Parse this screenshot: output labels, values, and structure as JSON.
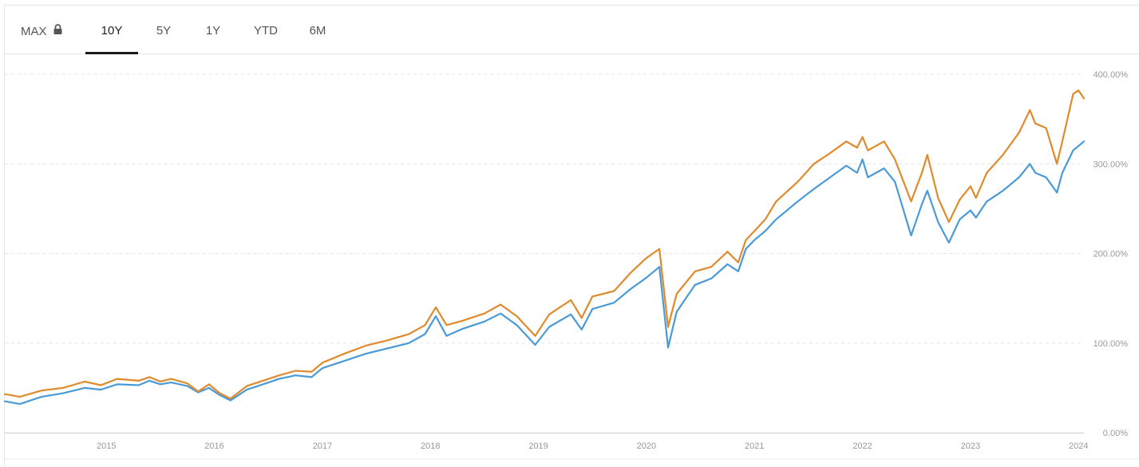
{
  "tabs": [
    {
      "label": "MAX",
      "locked": true
    },
    {
      "label": "10Y",
      "active": true
    },
    {
      "label": "5Y"
    },
    {
      "label": "1Y"
    },
    {
      "label": "YTD"
    },
    {
      "label": "6M"
    }
  ],
  "colors": {
    "series_orange": "#e08a2b",
    "series_blue": "#4a9ad8",
    "grid": "#e6e6e6",
    "axis_text": "#999999"
  },
  "chart_data": {
    "type": "line",
    "y_ticks": [
      "400.00%",
      "300.00%",
      "200.00%",
      "100.00%",
      "0.00%"
    ],
    "x_ticks": [
      "2015",
      "2016",
      "2017",
      "2018",
      "2019",
      "2020",
      "2021",
      "2022",
      "2023",
      "2024"
    ],
    "ylim": [
      0,
      400
    ],
    "xlim": [
      2014.06,
      2024.05
    ],
    "grid": "horizontal dashed",
    "series": [
      {
        "color": "#e08a2b",
        "points": [
          [
            2014.06,
            43
          ],
          [
            2014.2,
            40
          ],
          [
            2014.4,
            47
          ],
          [
            2014.6,
            50
          ],
          [
            2014.8,
            57
          ],
          [
            2014.95,
            53
          ],
          [
            2015.1,
            60
          ],
          [
            2015.3,
            58
          ],
          [
            2015.4,
            62
          ],
          [
            2015.5,
            57
          ],
          [
            2015.6,
            60
          ],
          [
            2015.75,
            55
          ],
          [
            2015.85,
            46
          ],
          [
            2015.95,
            54
          ],
          [
            2016.05,
            44
          ],
          [
            2016.15,
            38
          ],
          [
            2016.3,
            52
          ],
          [
            2016.45,
            58
          ],
          [
            2016.6,
            64
          ],
          [
            2016.75,
            69
          ],
          [
            2016.9,
            68
          ],
          [
            2017.0,
            78
          ],
          [
            2017.2,
            88
          ],
          [
            2017.4,
            97
          ],
          [
            2017.6,
            103
          ],
          [
            2017.8,
            110
          ],
          [
            2017.95,
            120
          ],
          [
            2018.05,
            140
          ],
          [
            2018.15,
            120
          ],
          [
            2018.3,
            125
          ],
          [
            2018.5,
            133
          ],
          [
            2018.65,
            143
          ],
          [
            2018.8,
            130
          ],
          [
            2018.97,
            108
          ],
          [
            2019.1,
            132
          ],
          [
            2019.3,
            148
          ],
          [
            2019.4,
            128
          ],
          [
            2019.5,
            152
          ],
          [
            2019.7,
            158
          ],
          [
            2019.85,
            178
          ],
          [
            2020.0,
            195
          ],
          [
            2020.12,
            205
          ],
          [
            2020.2,
            118
          ],
          [
            2020.28,
            155
          ],
          [
            2020.45,
            180
          ],
          [
            2020.6,
            185
          ],
          [
            2020.75,
            202
          ],
          [
            2020.85,
            190
          ],
          [
            2020.92,
            215
          ],
          [
            2021.0,
            225
          ],
          [
            2021.1,
            238
          ],
          [
            2021.2,
            258
          ],
          [
            2021.4,
            280
          ],
          [
            2021.55,
            300
          ],
          [
            2021.7,
            312
          ],
          [
            2021.85,
            325
          ],
          [
            2021.95,
            318
          ],
          [
            2022.0,
            330
          ],
          [
            2022.05,
            315
          ],
          [
            2022.2,
            325
          ],
          [
            2022.3,
            305
          ],
          [
            2022.45,
            258
          ],
          [
            2022.55,
            290
          ],
          [
            2022.6,
            310
          ],
          [
            2022.7,
            262
          ],
          [
            2022.8,
            235
          ],
          [
            2022.9,
            260
          ],
          [
            2023.0,
            275
          ],
          [
            2023.05,
            262
          ],
          [
            2023.15,
            290
          ],
          [
            2023.3,
            310
          ],
          [
            2023.45,
            335
          ],
          [
            2023.55,
            360
          ],
          [
            2023.6,
            345
          ],
          [
            2023.7,
            340
          ],
          [
            2023.8,
            300
          ],
          [
            2023.85,
            325
          ],
          [
            2023.95,
            378
          ],
          [
            2024.0,
            382
          ],
          [
            2024.05,
            373
          ]
        ]
      },
      {
        "color": "#4a9ad8",
        "points": [
          [
            2014.06,
            35
          ],
          [
            2014.2,
            32
          ],
          [
            2014.4,
            40
          ],
          [
            2014.6,
            44
          ],
          [
            2014.8,
            50
          ],
          [
            2014.95,
            48
          ],
          [
            2015.1,
            54
          ],
          [
            2015.3,
            53
          ],
          [
            2015.4,
            58
          ],
          [
            2015.5,
            54
          ],
          [
            2015.6,
            56
          ],
          [
            2015.75,
            52
          ],
          [
            2015.85,
            45
          ],
          [
            2015.95,
            50
          ],
          [
            2016.05,
            42
          ],
          [
            2016.15,
            36
          ],
          [
            2016.3,
            48
          ],
          [
            2016.45,
            54
          ],
          [
            2016.6,
            60
          ],
          [
            2016.75,
            64
          ],
          [
            2016.9,
            62
          ],
          [
            2017.0,
            72
          ],
          [
            2017.2,
            80
          ],
          [
            2017.4,
            88
          ],
          [
            2017.6,
            94
          ],
          [
            2017.8,
            100
          ],
          [
            2017.95,
            110
          ],
          [
            2018.05,
            130
          ],
          [
            2018.15,
            108
          ],
          [
            2018.3,
            116
          ],
          [
            2018.5,
            124
          ],
          [
            2018.65,
            133
          ],
          [
            2018.8,
            120
          ],
          [
            2018.97,
            98
          ],
          [
            2019.1,
            118
          ],
          [
            2019.3,
            132
          ],
          [
            2019.4,
            115
          ],
          [
            2019.5,
            138
          ],
          [
            2019.7,
            145
          ],
          [
            2019.85,
            160
          ],
          [
            2020.0,
            173
          ],
          [
            2020.12,
            185
          ],
          [
            2020.2,
            95
          ],
          [
            2020.28,
            135
          ],
          [
            2020.45,
            165
          ],
          [
            2020.6,
            172
          ],
          [
            2020.75,
            188
          ],
          [
            2020.85,
            180
          ],
          [
            2020.92,
            205
          ],
          [
            2021.0,
            215
          ],
          [
            2021.1,
            225
          ],
          [
            2021.2,
            238
          ],
          [
            2021.4,
            258
          ],
          [
            2021.55,
            272
          ],
          [
            2021.7,
            285
          ],
          [
            2021.85,
            298
          ],
          [
            2021.95,
            290
          ],
          [
            2022.0,
            305
          ],
          [
            2022.05,
            285
          ],
          [
            2022.2,
            295
          ],
          [
            2022.3,
            280
          ],
          [
            2022.45,
            220
          ],
          [
            2022.55,
            255
          ],
          [
            2022.6,
            270
          ],
          [
            2022.7,
            235
          ],
          [
            2022.8,
            212
          ],
          [
            2022.9,
            238
          ],
          [
            2023.0,
            248
          ],
          [
            2023.05,
            240
          ],
          [
            2023.15,
            258
          ],
          [
            2023.3,
            270
          ],
          [
            2023.45,
            285
          ],
          [
            2023.55,
            300
          ],
          [
            2023.6,
            290
          ],
          [
            2023.7,
            285
          ],
          [
            2023.8,
            268
          ],
          [
            2023.85,
            290
          ],
          [
            2023.95,
            315
          ],
          [
            2024.0,
            320
          ],
          [
            2024.05,
            325
          ]
        ]
      }
    ]
  }
}
